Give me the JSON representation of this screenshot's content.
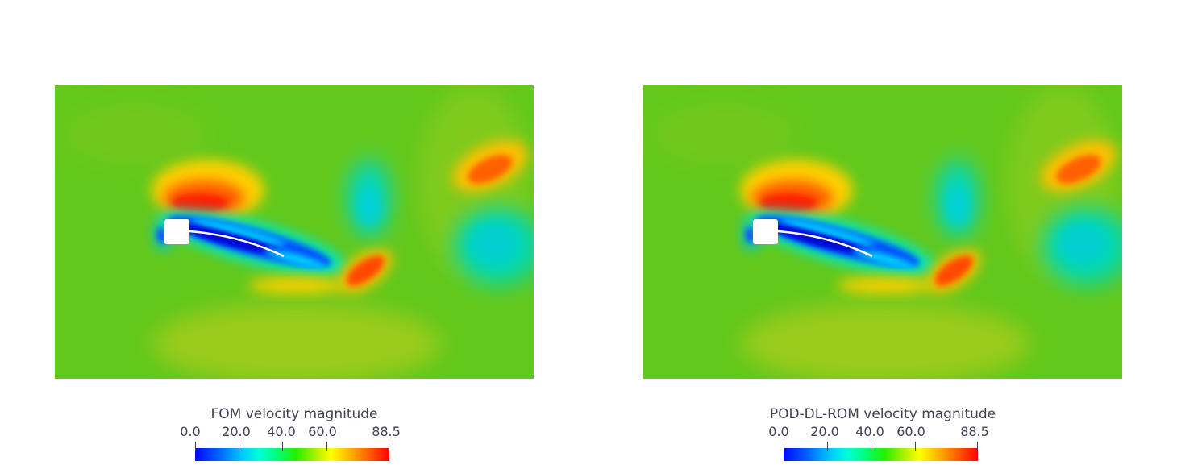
{
  "panels": [
    {
      "id": "fom",
      "colorbar": {
        "title": "FOM velocity magnitude",
        "ticks": [
          "0.0",
          "20.0",
          "40.0",
          "60.0",
          "88.5"
        ],
        "range": [
          0.0,
          88.5
        ],
        "colormap": "jet"
      }
    },
    {
      "id": "rom",
      "colorbar": {
        "title": "POD-DL-ROM velocity magnitude",
        "ticks": [
          "0.0",
          "20.0",
          "40.0",
          "60.0",
          "88.5"
        ],
        "range": [
          0.0,
          88.5
        ],
        "colormap": "jet"
      }
    }
  ],
  "colors": {
    "background_field": "#5cc81a",
    "high": "#ff2a00",
    "low": "#0a1fdc",
    "mid": "#00d8c8",
    "obstacle": "#ffffff",
    "text": "#3f4050"
  }
}
